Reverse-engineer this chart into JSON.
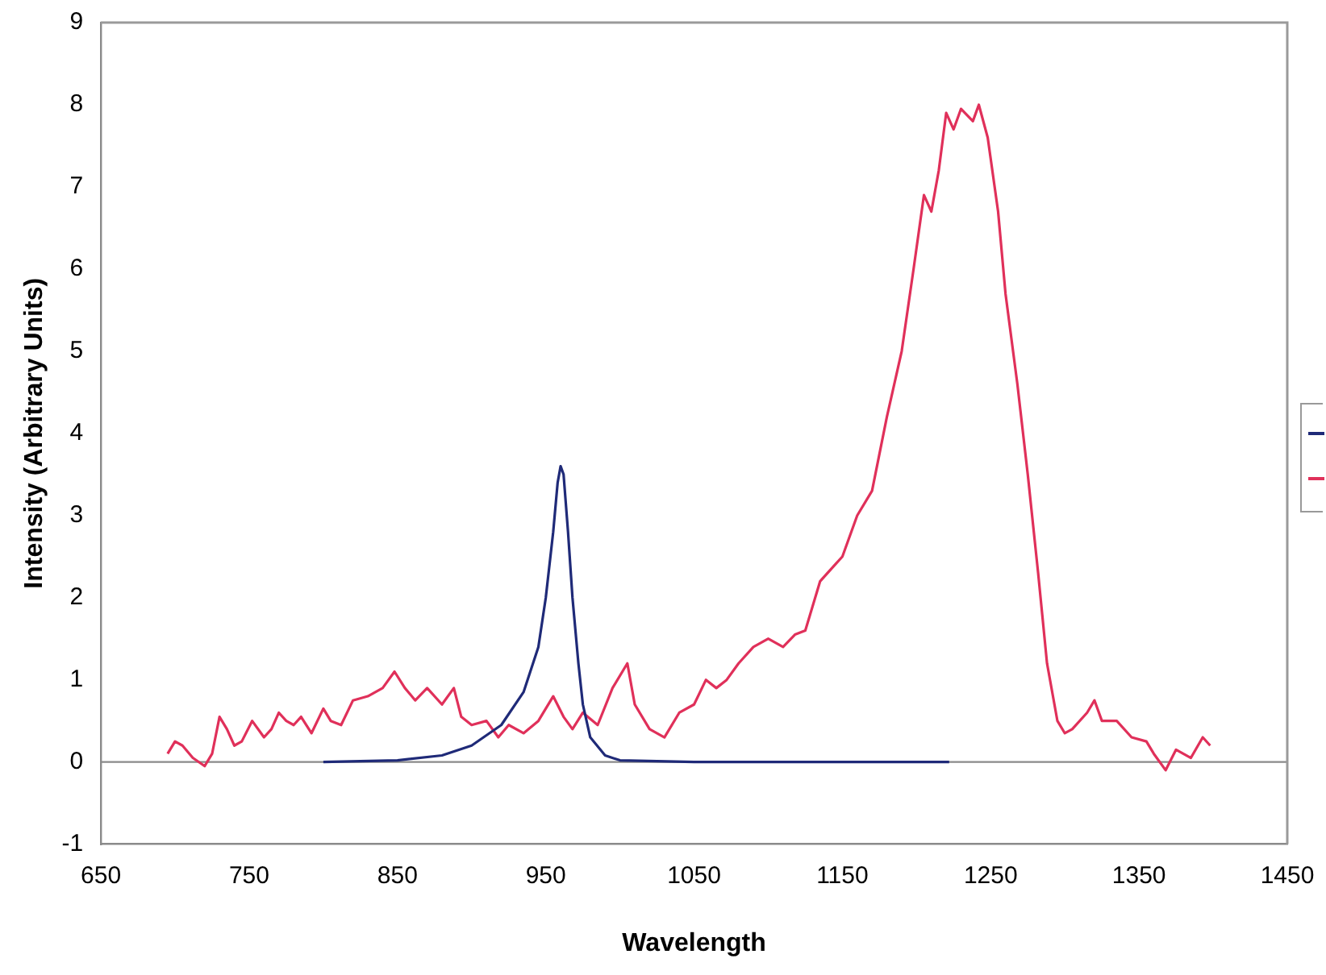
{
  "chart_data": {
    "type": "line",
    "xlabel": "Wavelength",
    "ylabel": "Intensity (Arbitrary Units)",
    "xlim": [
      650,
      1450
    ],
    "xticks": [
      650,
      750,
      850,
      950,
      1050,
      1150,
      1250,
      1350,
      1450
    ],
    "ylim": [
      -1,
      9
    ],
    "yticks": [
      -1,
      0,
      1,
      2,
      3,
      4,
      5,
      6,
      7,
      8,
      9
    ],
    "grid": false,
    "marker": "none",
    "line_style": "solid",
    "ref_lines": [
      {
        "axis": "y",
        "value": 0,
        "color": "#8a8a8a"
      }
    ],
    "series": [
      {
        "color": "#1f2a78",
        "x": [
          800,
          850,
          880,
          900,
          920,
          935,
          945,
          950,
          955,
          958,
          960,
          962,
          965,
          968,
          972,
          975,
          980,
          990,
          1000,
          1050,
          1150,
          1222
        ],
        "values": [
          0,
          0.02,
          0.08,
          0.2,
          0.45,
          0.85,
          1.4,
          2.0,
          2.8,
          3.4,
          3.6,
          3.5,
          2.8,
          2.0,
          1.2,
          0.7,
          0.3,
          0.08,
          0.02,
          0,
          0,
          0
        ]
      },
      {
        "color": "#e0305a",
        "x": [
          695,
          700,
          705,
          712,
          720,
          725,
          730,
          735,
          740,
          745,
          752,
          760,
          765,
          770,
          775,
          780,
          785,
          792,
          800,
          805,
          812,
          820,
          830,
          840,
          848,
          855,
          862,
          870,
          880,
          888,
          893,
          900,
          910,
          918,
          925,
          935,
          945,
          955,
          962,
          968,
          975,
          985,
          995,
          1005,
          1010,
          1020,
          1030,
          1040,
          1050,
          1058,
          1065,
          1072,
          1080,
          1090,
          1100,
          1110,
          1118,
          1125,
          1135,
          1145,
          1150,
          1160,
          1170,
          1180,
          1190,
          1198,
          1205,
          1210,
          1215,
          1220,
          1225,
          1230,
          1238,
          1242,
          1248,
          1255,
          1260,
          1268,
          1275,
          1282,
          1288,
          1295,
          1300,
          1305,
          1315,
          1320,
          1325,
          1335,
          1345,
          1355,
          1360,
          1368,
          1375,
          1385,
          1393,
          1398
        ],
        "values": [
          0.1,
          0.25,
          0.2,
          0.05,
          -0.05,
          0.1,
          0.55,
          0.4,
          0.2,
          0.25,
          0.5,
          0.3,
          0.4,
          0.6,
          0.5,
          0.45,
          0.55,
          0.35,
          0.65,
          0.5,
          0.45,
          0.75,
          0.8,
          0.9,
          1.1,
          0.9,
          0.75,
          0.9,
          0.7,
          0.9,
          0.55,
          0.45,
          0.5,
          0.3,
          0.45,
          0.35,
          0.5,
          0.8,
          0.55,
          0.4,
          0.6,
          0.45,
          0.9,
          1.2,
          0.7,
          0.4,
          0.3,
          0.6,
          0.7,
          1.0,
          0.9,
          1.0,
          1.2,
          1.4,
          1.5,
          1.4,
          1.55,
          1.6,
          2.2,
          2.4,
          2.5,
          3.0,
          3.3,
          4.2,
          5.0,
          6.0,
          6.9,
          6.7,
          7.2,
          7.9,
          7.7,
          7.95,
          7.8,
          8.0,
          7.6,
          6.7,
          5.7,
          4.6,
          3.5,
          2.3,
          1.2,
          0.5,
          0.35,
          0.4,
          0.6,
          0.75,
          0.5,
          0.5,
          0.3,
          0.25,
          0.1,
          -0.1,
          0.15,
          0.05,
          0.3,
          0.2
        ]
      }
    ]
  }
}
